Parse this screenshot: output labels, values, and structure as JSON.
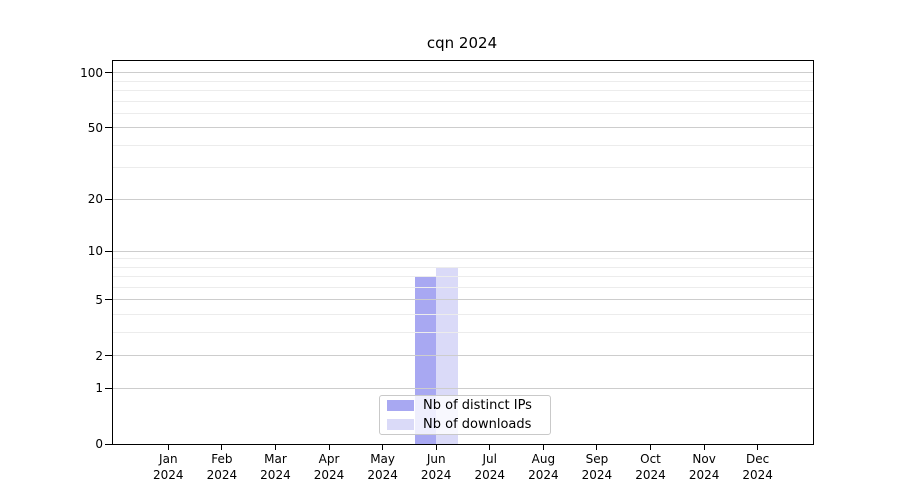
{
  "chart_data": {
    "type": "bar",
    "title": "cqn 2024",
    "months": [
      "Jan",
      "Feb",
      "Mar",
      "Apr",
      "May",
      "Jun",
      "Jul",
      "Aug",
      "Sep",
      "Oct",
      "Nov",
      "Dec"
    ],
    "year": "2024",
    "series": [
      {
        "name": "Nb of distinct IPs",
        "color": "#a8a8f2",
        "values": [
          0,
          0,
          0,
          0,
          0,
          7,
          0,
          0,
          0,
          0,
          0,
          0
        ]
      },
      {
        "name": "Nb of downloads",
        "color": "#dadaf8",
        "values": [
          0,
          0,
          0,
          0,
          0,
          8,
          0,
          0,
          0,
          0,
          0,
          0
        ]
      }
    ],
    "y_scale": "log1p",
    "y_ticks": [
      0,
      1,
      2,
      5,
      10,
      20,
      50,
      100
    ],
    "y_minor_gridlines": [
      3,
      4,
      6,
      7,
      8,
      9,
      30,
      40,
      60,
      70,
      80,
      90
    ],
    "ylim": [
      0,
      116
    ],
    "grid": true,
    "legend_position": "lower center"
  }
}
